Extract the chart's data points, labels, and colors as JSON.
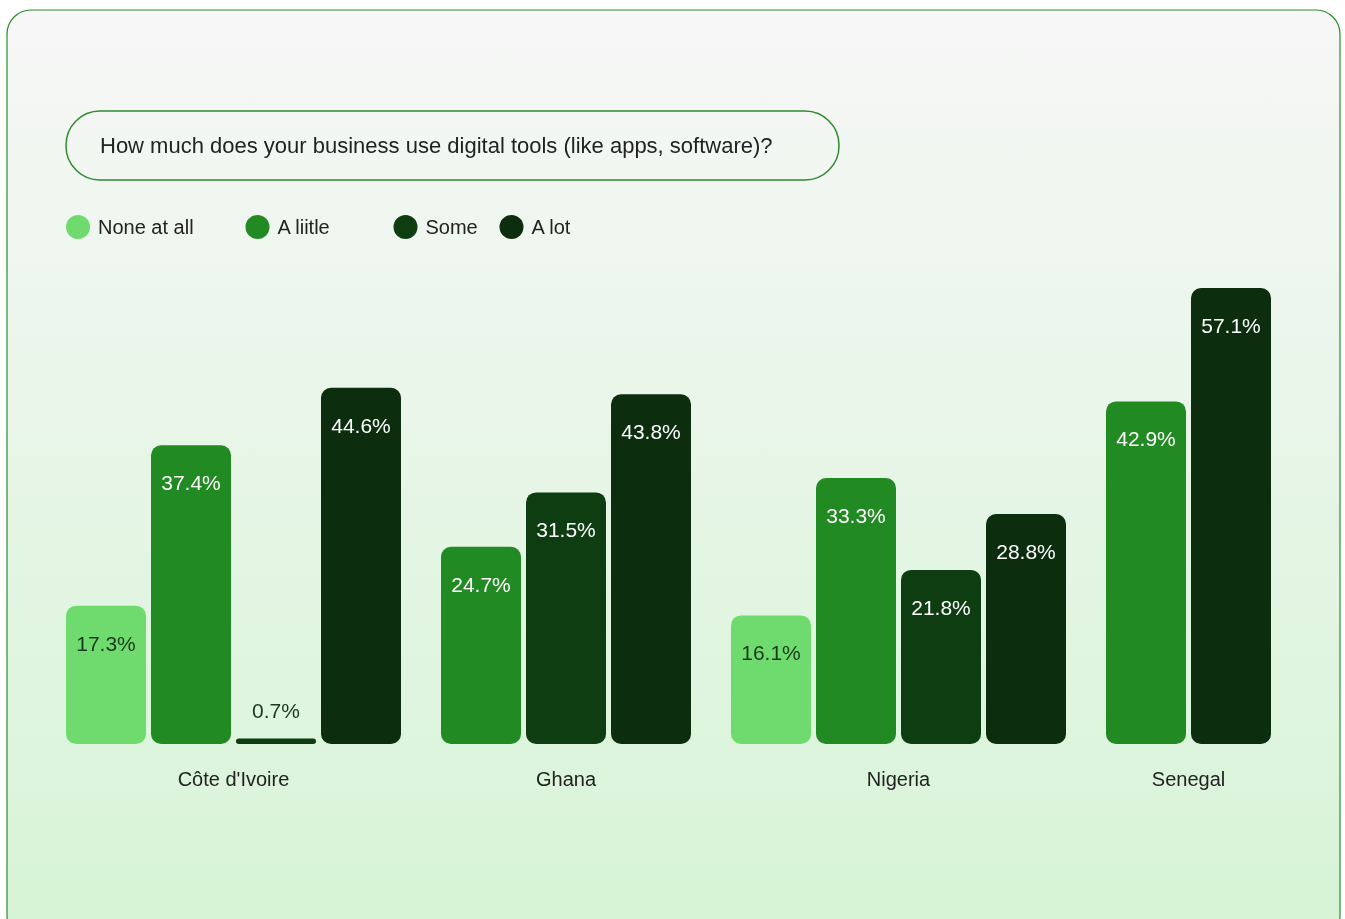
{
  "chart_data": {
    "type": "bar",
    "title": "How much does your business use digital tools (like apps, software)?",
    "categories": [
      "Côte d'Ivoire",
      "Ghana",
      "Nigeria",
      "Senegal"
    ],
    "legend": "top left",
    "series": [
      {
        "name": "None at all",
        "color": "#6fdb6f",
        "values": [
          17.3,
          null,
          16.1,
          null
        ],
        "value_labels": [
          "17.3%",
          null,
          "16.1%",
          null
        ]
      },
      {
        "name": "A liitle",
        "color": "#218a22",
        "values": [
          37.4,
          24.7,
          33.3,
          42.9
        ],
        "value_labels": [
          "37.4%",
          "24.7%",
          "33.3%",
          "42.9%"
        ]
      },
      {
        "name": "Some",
        "color": "#0f3d12",
        "values": [
          0.7,
          31.5,
          21.8,
          null
        ],
        "value_labels": [
          "0.7%",
          "31.5%",
          "21.8%",
          null
        ]
      },
      {
        "name": "A lot",
        "color": "#0c2e0f",
        "values": [
          44.6,
          43.8,
          28.8,
          57.1
        ],
        "value_labels": [
          "44.6%",
          "43.8%",
          "28.8%",
          "57.1%"
        ]
      }
    ]
  }
}
